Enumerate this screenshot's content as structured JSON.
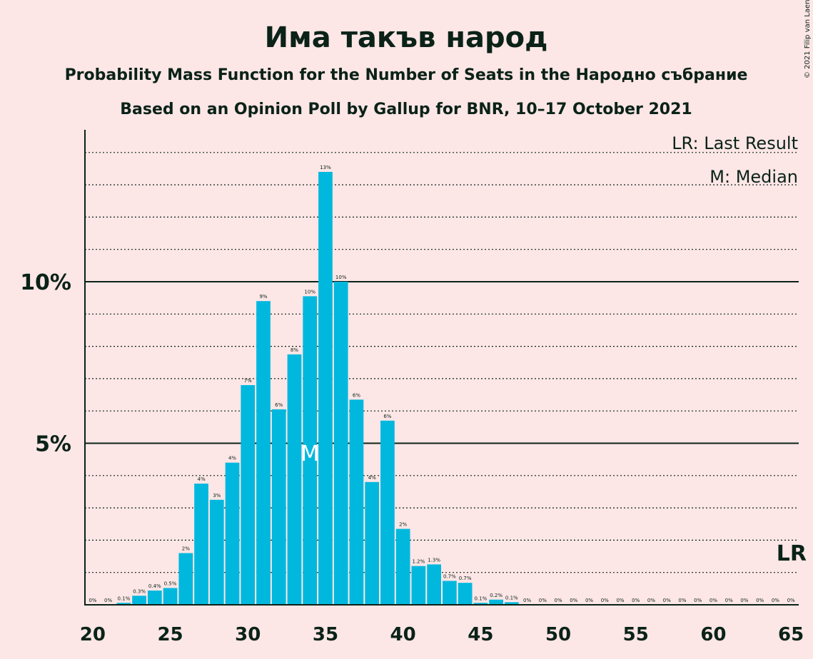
{
  "chart_data": {
    "type": "bar",
    "title": "Има такъв народ",
    "subtitle": "Probability Mass Function for the Number of Seats in the Народно събрание",
    "subtitle2": "Based on an Opinion Poll by Gallup for BNR, 10–17 October 2021",
    "copyright": "© 2021 Filip van Laenen",
    "legend": {
      "last_result": "LR: Last Result",
      "median": "M: Median",
      "placement": "top-right"
    },
    "x": [
      20,
      21,
      22,
      23,
      24,
      25,
      26,
      27,
      28,
      29,
      30,
      31,
      32,
      33,
      34,
      35,
      36,
      37,
      38,
      39,
      40,
      41,
      42,
      43,
      44,
      45,
      46,
      47,
      48,
      49,
      50,
      51,
      52,
      53,
      54,
      55,
      56,
      57,
      58,
      59,
      60,
      61,
      62,
      63,
      64,
      65
    ],
    "values": [
      0,
      0,
      0.06,
      0.28,
      0.44,
      0.52,
      1.6,
      3.75,
      3.25,
      4.4,
      6.8,
      9.4,
      6.05,
      7.75,
      9.55,
      13.4,
      10.0,
      6.35,
      3.8,
      5.7,
      2.35,
      1.2,
      1.25,
      0.74,
      0.68,
      0.06,
      0.16,
      0.08,
      0,
      0,
      0,
      0,
      0,
      0,
      0,
      0,
      0,
      0,
      0,
      0,
      0,
      0,
      0,
      0,
      0,
      0
    ],
    "labels": [
      "0%",
      "0%",
      "0.1%",
      "0.3%",
      "0.4%",
      "0.5%",
      "2%",
      "4%",
      "3%",
      "4%",
      "7%",
      "9%",
      "6%",
      "8%",
      "10%",
      "13%",
      "10%",
      "6%",
      "4%",
      "6%",
      "2%",
      "1.2%",
      "1.3%",
      "0.7%",
      "0.7%",
      "0.1%",
      "0.2%",
      "0.1%",
      "0%",
      "0%",
      "0%",
      "0%",
      "0%",
      "0%",
      "0%",
      "0%",
      "0%",
      "0%",
      "0%",
      "0%",
      "0%",
      "0%",
      "0%",
      "0%",
      "0%",
      "0%"
    ],
    "x_ticks": [
      20,
      25,
      30,
      35,
      40,
      45,
      50,
      55,
      60,
      65
    ],
    "x_tick_labels": [
      "20",
      "25",
      "30",
      "35",
      "40",
      "45",
      "50",
      "55",
      "60",
      "65"
    ],
    "y_ticks": [
      5,
      10
    ],
    "y_tick_labels": [
      "5%",
      "10%"
    ],
    "ylim": [
      0,
      14.6
    ],
    "xlim": [
      19.5,
      65.5
    ],
    "median": 34,
    "median_label": "M",
    "last_result": 65,
    "last_result_label": "LR",
    "grid": "dotted minor every 1%, solid major every 5%",
    "bar_color": "#00B8DE"
  }
}
